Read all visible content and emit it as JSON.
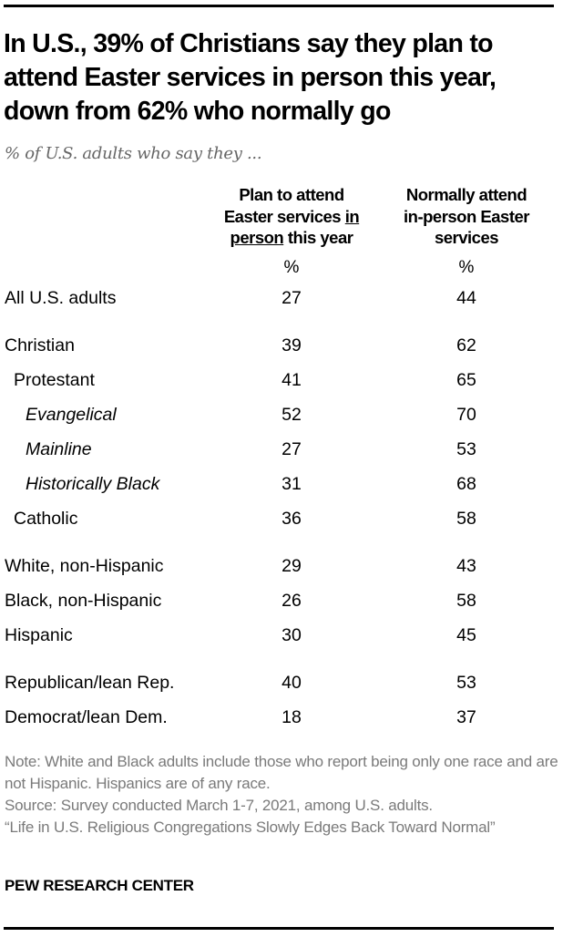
{
  "chart_data": {
    "type": "table",
    "title": "In U.S., 39% of Christians say they plan to attend Easter services in person this year, down from 62% who normally go",
    "subtitle": "% of U.S. adults who say they ...",
    "columns": [
      {
        "pre": "Plan to attend",
        "line2_pre": "Easter services ",
        "line2_u": "in",
        "line3_u": "person",
        "line3_post": " this year",
        "unit": "%"
      },
      {
        "line1": "Normally attend",
        "line2": "in-person Easter",
        "line3": "services",
        "unit": "%"
      }
    ],
    "rows": [
      {
        "label": "All U.S. adults",
        "indent": 0,
        "italic": false,
        "group": 1,
        "values": [
          "27",
          "44"
        ]
      },
      {
        "label": "Christian",
        "indent": 0,
        "italic": false,
        "group": 2,
        "values": [
          "39",
          "62"
        ]
      },
      {
        "label": "Protestant",
        "indent": 1,
        "italic": false,
        "group": 2,
        "values": [
          "41",
          "65"
        ]
      },
      {
        "label": "Evangelical",
        "indent": 2,
        "italic": true,
        "group": 2,
        "values": [
          "52",
          "70"
        ]
      },
      {
        "label": "Mainline",
        "indent": 2,
        "italic": true,
        "group": 2,
        "values": [
          "27",
          "53"
        ]
      },
      {
        "label": "Historically Black",
        "indent": 2,
        "italic": true,
        "group": 2,
        "values": [
          "31",
          "68"
        ]
      },
      {
        "label": "Catholic",
        "indent": 1,
        "italic": false,
        "group": 2,
        "values": [
          "36",
          "58"
        ]
      },
      {
        "label": "White, non-Hispanic",
        "indent": 0,
        "italic": false,
        "group": 3,
        "values": [
          "29",
          "43"
        ]
      },
      {
        "label": "Black, non-Hispanic",
        "indent": 0,
        "italic": false,
        "group": 3,
        "values": [
          "26",
          "58"
        ]
      },
      {
        "label": "Hispanic",
        "indent": 0,
        "italic": false,
        "group": 3,
        "values": [
          "30",
          "45"
        ]
      },
      {
        "label": "Republican/lean Rep.",
        "indent": 0,
        "italic": false,
        "group": 4,
        "values": [
          "40",
          "53"
        ]
      },
      {
        "label": "Democrat/lean Dem.",
        "indent": 0,
        "italic": false,
        "group": 4,
        "values": [
          "18",
          "37"
        ]
      }
    ]
  },
  "notes": {
    "note": "Note: White and Black adults include those who report being only one race and are not Hispanic. Hispanics are of any race.",
    "source": "Source: Survey conducted March 1-7, 2021, among U.S. adults.",
    "report": "“Life in U.S. Religious Congregations Slowly Edges Back Toward Normal”"
  },
  "brand": "PEW RESEARCH CENTER"
}
